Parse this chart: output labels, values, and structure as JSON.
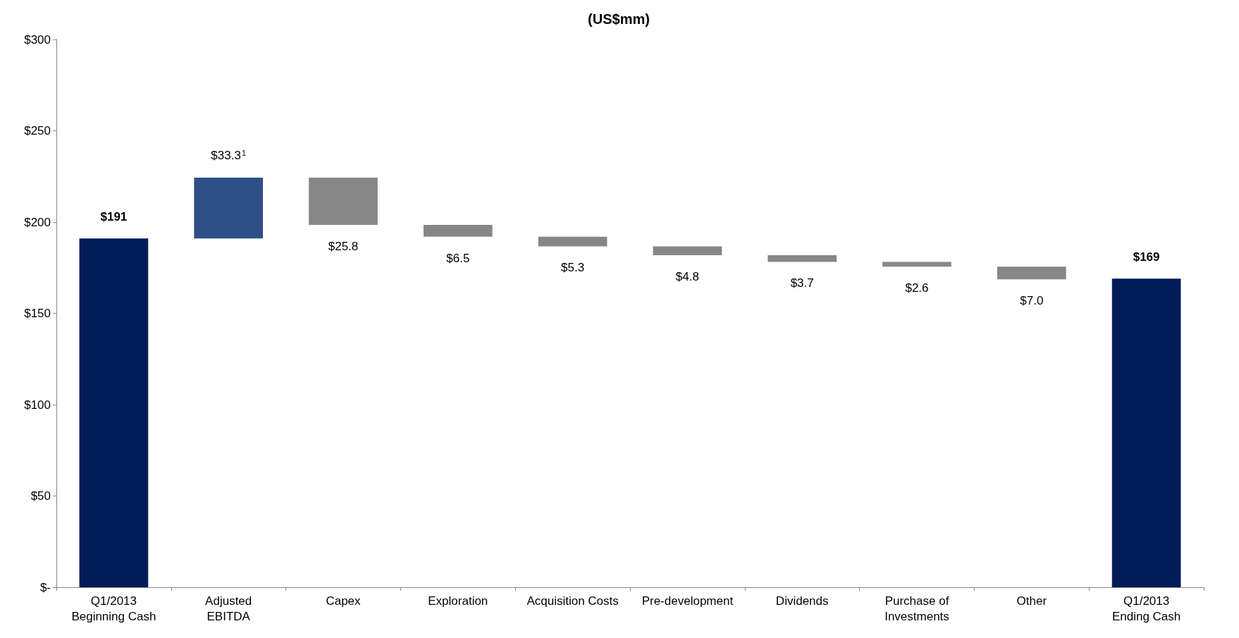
{
  "chart_data": {
    "type": "bar",
    "title": "(US$mm)",
    "categories": [
      "Q1/2013\nBeginning Cash",
      "Adjusted\nEBITDA",
      "Capex",
      "Exploration",
      "Acquisition Costs",
      "Pre-development",
      "Dividends",
      "Purchase of\nInvestments",
      "Other",
      "Q1/2013\nEnding Cash"
    ],
    "values": [
      191,
      33.3,
      -25.8,
      -6.5,
      -5.3,
      -4.8,
      -3.7,
      -2.6,
      -7.0,
      169
    ],
    "base": [
      0,
      191,
      224.3,
      198.5,
      192.0,
      186.7,
      181.9,
      178.2,
      175.6,
      0
    ],
    "colors": [
      "#001c58",
      "#2e5086",
      "#878787",
      "#878787",
      "#878787",
      "#878787",
      "#878787",
      "#878787",
      "#878787",
      "#001c58"
    ],
    "value_labels": [
      "$191",
      "$33.3$^{1}$",
      "$25.8",
      "$6.5",
      "$5.3",
      "$4.8",
      "$3.7",
      "$2.6",
      "$7.0",
      "$169"
    ],
    "ylim": [
      0,
      300
    ],
    "yticks": [
      {
        "value": 0,
        "label": "$-"
      },
      {
        "value": 50,
        "label": "$50"
      },
      {
        "value": 100,
        "label": "$100"
      },
      {
        "value": 150,
        "label": "$150"
      },
      {
        "value": 200,
        "label": "$200"
      },
      {
        "value": 250,
        "label": "$250"
      },
      {
        "value": 300,
        "label": "$300"
      }
    ],
    "grid": false
  }
}
